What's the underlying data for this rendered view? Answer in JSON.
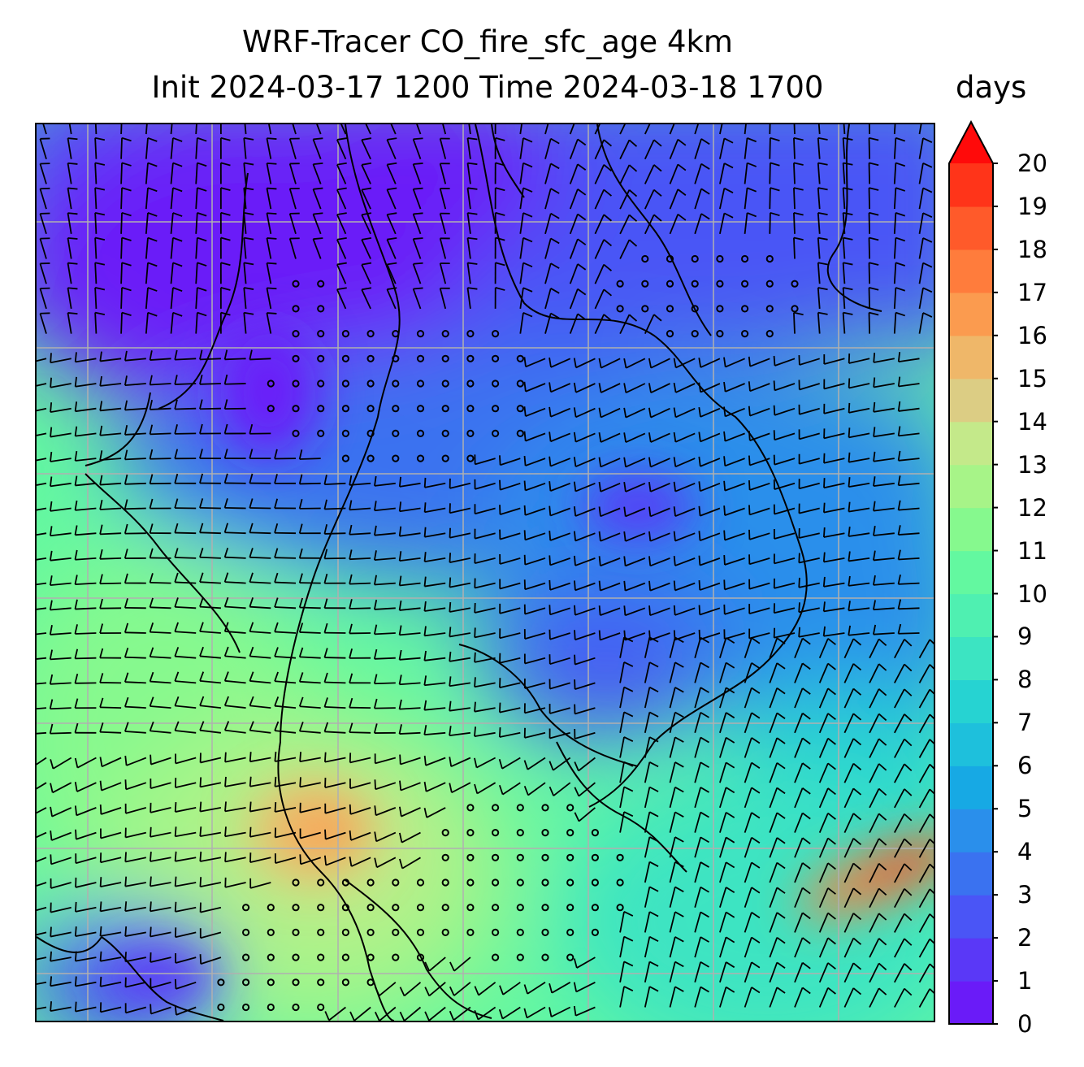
{
  "title": {
    "line1": "WRF-Tracer CO_fire_sfc_age 4km",
    "line2": "Init 2024-03-17 1200 Time 2024-03-18 1700"
  },
  "colorbar": {
    "units": "days",
    "ticks": [
      "0",
      "1",
      "2",
      "3",
      "4",
      "5",
      "6",
      "7",
      "8",
      "9",
      "10",
      "11",
      "12",
      "13",
      "14",
      "15",
      "16",
      "17",
      "18",
      "19",
      "20"
    ],
    "extend": "max",
    "colors": [
      "#6a1bf8",
      "#5a38f7",
      "#4a55f6",
      "#3a72f0",
      "#2a8feb",
      "#17a9e4",
      "#1ec0dc",
      "#26d3d2",
      "#3ce4c2",
      "#4ff0b1",
      "#63f8a0",
      "#86f98e",
      "#a7f488",
      "#c4e98a",
      "#dccd84",
      "#efb769",
      "#fb9b4f",
      "#ff7c3c",
      "#ff5a2a",
      "#ff3419",
      "#ff0a0a"
    ],
    "extend_color": "#ff0a0a"
  },
  "map": {
    "field": "CO_fire_sfc_age",
    "gridlines": true,
    "gridline_color": "#b0b0b0",
    "overlays": [
      "wind-barbs",
      "coastlines",
      "country-borders"
    ]
  }
}
